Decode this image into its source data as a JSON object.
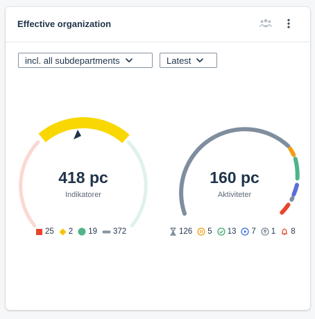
{
  "widget": {
    "title": "Effective organization"
  },
  "filters": {
    "department": "incl. all subdepartments",
    "period": "Latest"
  },
  "gauges": [
    {
      "value": "418 pc",
      "label": "Indikatorer",
      "legend": [
        {
          "icon": "red-square-icon",
          "color": "#e8452c",
          "count": "25"
        },
        {
          "icon": "yellow-diamond-icon",
          "color": "#f5c400",
          "count": "2"
        },
        {
          "icon": "green-circle-icon",
          "color": "#4fb488",
          "count": "19"
        },
        {
          "icon": "gray-dash-icon",
          "color": "#8795a4",
          "count": "372"
        }
      ]
    },
    {
      "value": "160 pc",
      "label": "Aktiviteter",
      "legend": [
        {
          "icon": "hourglass-icon",
          "color": "#7a8796",
          "count": "126"
        },
        {
          "icon": "pause-circle-icon",
          "color": "#f39c12",
          "count": "5"
        },
        {
          "icon": "check-circle-icon",
          "color": "#3aaa6a",
          "count": "13"
        },
        {
          "icon": "play-circle-icon",
          "color": "#3b6ed8",
          "count": "7"
        },
        {
          "icon": "arrow-up-circle-icon",
          "color": "#7a8796",
          "count": "1"
        },
        {
          "icon": "bell-icon",
          "color": "#e8452c",
          "count": "8"
        }
      ]
    }
  ]
}
